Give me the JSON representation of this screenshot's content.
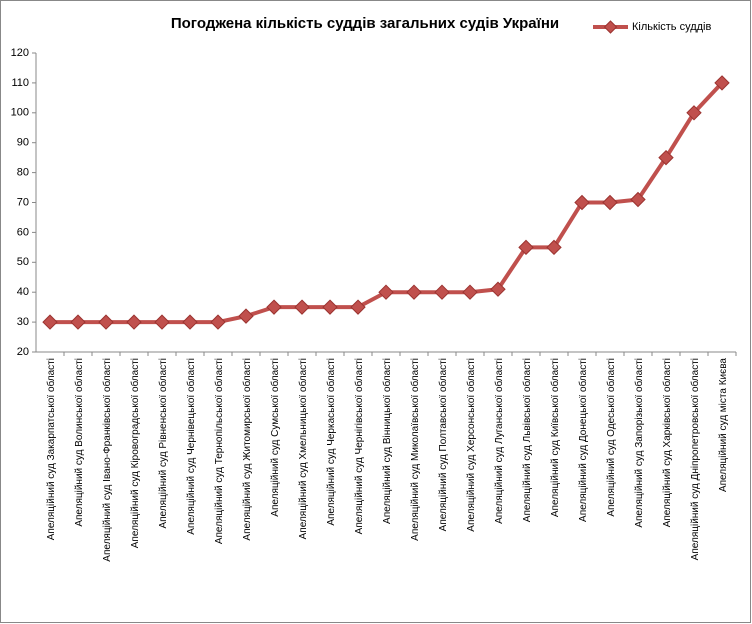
{
  "chart_data": {
    "type": "line",
    "title": "Погоджена кількість суддів загальних судів України",
    "categories": [
      "Апеляційний суд Закарпатської області",
      "Апеляційний суд Волинської області",
      "Апеляційний суд Івано-Франківської області",
      "Апеляційний суд Кіровоградської області",
      "Апеляційний суд Рівненської області",
      "Апеляційний суд Чернівецької області",
      "Апеляційний суд Тернопільської області",
      "Апеляційний суд Житомирської області",
      "Апеляційний суд Сумської області",
      "Апеляційний суд Хмельницької області",
      "Апеляційний суд Черкаської області",
      "Апеляційний суд Чернігівської області",
      "Апеляційний суд Вінницької області",
      "Апеляційний суд Миколаївської області",
      "Апеляційний суд Полтавської області",
      "Апеляційний суд Херсонської області",
      "Апеляційний суд Луганської області",
      "Апеляційний суд Львівської області",
      "Апеляційний суд Київської області",
      "Апеляційний суд Донецької області",
      "Апеляційний суд Одеської області",
      "Апеляційний суд Запорізької області",
      "Апеляційний суд Харківської області",
      "Апеляційний суд Дніпропетровської області",
      "Апеляційний суд міста Києва"
    ],
    "series": [
      {
        "name": "Кількість суддів",
        "color": "#c0504d",
        "values": [
          30,
          30,
          30,
          30,
          30,
          30,
          30,
          32,
          35,
          35,
          35,
          35,
          40,
          40,
          40,
          40,
          41,
          55,
          55,
          70,
          70,
          71,
          85,
          100,
          110
        ]
      }
    ],
    "ylim": [
      20,
      120
    ],
    "yticks": [
      20,
      30,
      40,
      50,
      60,
      70,
      80,
      90,
      100,
      110,
      120
    ],
    "grid": false,
    "legend": "top-right"
  }
}
